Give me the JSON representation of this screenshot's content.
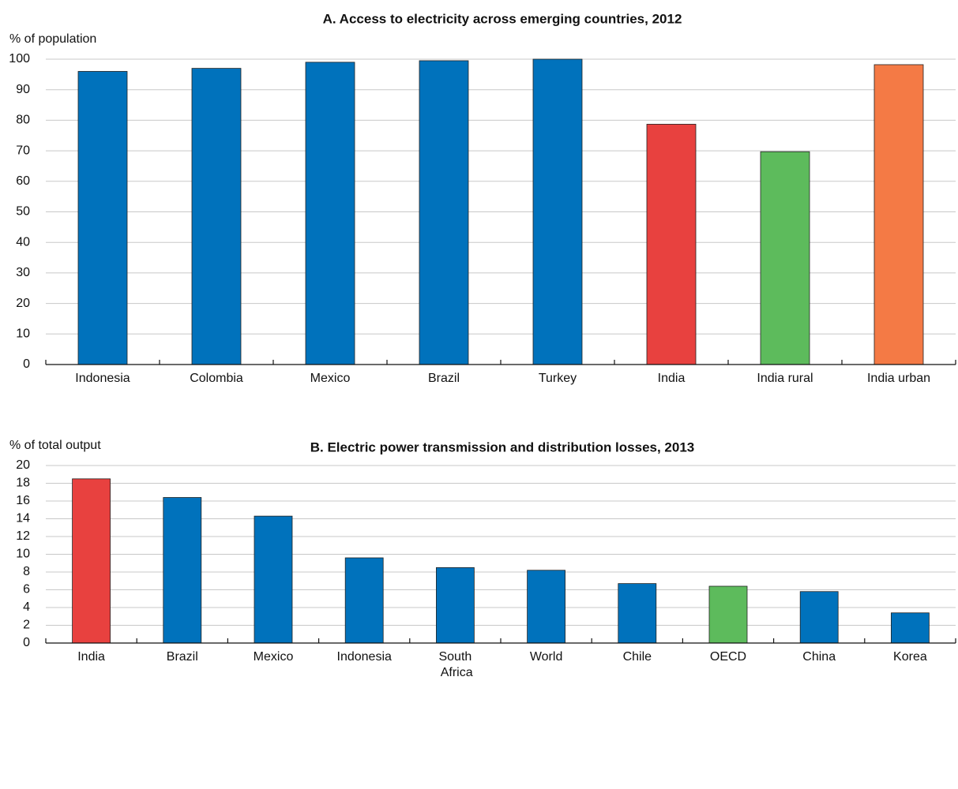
{
  "chart_data": [
    {
      "type": "bar",
      "title": "A. Access to electricity across emerging countries, 2012",
      "y_label": "% of population",
      "categories": [
        "Indonesia",
        "Colombia",
        "Mexico",
        "Brazil",
        "Turkey",
        "India",
        "India rural",
        "India urban"
      ],
      "values": [
        96,
        97,
        99,
        99.5,
        100,
        78.7,
        69.7,
        98.2
      ],
      "colors": [
        "#0072bc",
        "#0072bc",
        "#0072bc",
        "#0072bc",
        "#0072bc",
        "#e8413f",
        "#5dbb5c",
        "#f47a45"
      ],
      "ylim": [
        0,
        100
      ],
      "yticks": [
        0,
        10,
        20,
        30,
        40,
        50,
        60,
        70,
        80,
        90,
        100
      ],
      "grid": true
    },
    {
      "type": "bar",
      "title": "B. Electric power transmission and distribution losses, 2013",
      "y_label": "% of total output",
      "categories": [
        "India",
        "Brazil",
        "Mexico",
        "Indonesia",
        "South Africa",
        "World",
        "Chile",
        "OECD",
        "China",
        "Korea"
      ],
      "values": [
        18.5,
        16.4,
        14.3,
        9.6,
        8.5,
        8.2,
        6.7,
        6.4,
        5.8,
        3.4
      ],
      "colors": [
        "#e8413f",
        "#0072bc",
        "#0072bc",
        "#0072bc",
        "#0072bc",
        "#0072bc",
        "#0072bc",
        "#5dbb5c",
        "#0072bc",
        "#0072bc"
      ],
      "ylim": [
        0,
        20
      ],
      "yticks": [
        0,
        2,
        4,
        6,
        8,
        10,
        12,
        14,
        16,
        18,
        20
      ],
      "grid": true
    }
  ]
}
